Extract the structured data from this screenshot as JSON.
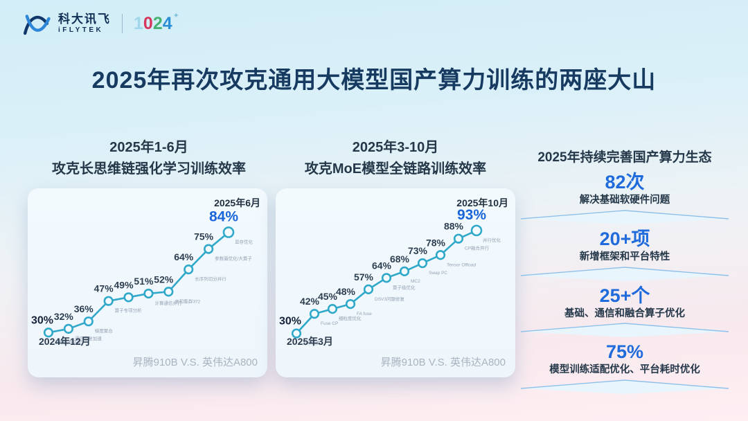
{
  "header": {
    "brand_cn": "科大讯飞",
    "brand_en": "iFLYTEK",
    "divider": "|",
    "digits": [
      "1",
      "0",
      "2",
      "4"
    ],
    "sparkle": "✦"
  },
  "title": "2025年再次攻克通用大模型国产算力训练的两座大山",
  "chart_data": [
    {
      "type": "line",
      "heading1": "2025年1-6月",
      "heading2": "攻克长思维链强化学习训练效率",
      "start_label": "2024年12月",
      "end_label": "2025年6月",
      "footer": "昇腾910B V.S. 英伟达A800",
      "labels": [
        "30%",
        "32%",
        "36%",
        "47%",
        "49%",
        "51%",
        "52%",
        "64%",
        "75%",
        "84%"
      ],
      "values": [
        30,
        32,
        36,
        47,
        49,
        51,
        52,
        64,
        75,
        84
      ],
      "annotations": [
        "训练集群适配",
        "通信修复加速",
        "梯度聚合",
        "算子专项分析",
        "",
        "计算通信并行",
        "亲和集群372",
        "长序列切分并行",
        "参数面优化/大算子",
        "显存优化"
      ],
      "ylim": [
        26,
        92
      ],
      "line_color": "#2fa8c9",
      "grid": false,
      "legend": "none"
    },
    {
      "type": "line",
      "heading1": "2025年3-10月",
      "heading2": "攻克MoE模型全链路训练效率",
      "start_label": "2025年3月",
      "end_label": "2025年10月",
      "footer": "昇腾910B V.S. 英伟达A800",
      "labels": [
        "30%",
        "42%",
        "45%",
        "48%",
        "57%",
        "64%",
        "68%",
        "73%",
        "78%",
        "88%",
        "93%"
      ],
      "values": [
        30,
        42,
        45,
        48,
        57,
        64,
        68,
        73,
        78,
        88,
        93
      ],
      "annotations": [
        "万卡集群",
        "Fuse CP",
        "细粒度优化",
        "FA fuse",
        "DSV3问题修复",
        "算子级优化",
        "MC2",
        "Swap PC",
        "Tensor Offload",
        "CP融合并行",
        "并行优化"
      ],
      "ylim": [
        26,
        101
      ],
      "line_color": "#2fa8c9",
      "grid": false,
      "legend": "none"
    }
  ],
  "right_panel": {
    "title": "2025年持续完善国产算力生态",
    "stats": [
      {
        "value": "82次",
        "label": "解决基础软硬件问题"
      },
      {
        "value": "20+项",
        "label": "新增框架和平台特性"
      },
      {
        "value": "25+个",
        "label": "基础、通信和融合算子优化"
      },
      {
        "value": "75%",
        "label": "模型训练适配优化、平台耗时优化"
      }
    ]
  },
  "colors": {
    "accent_blue": "#1a66d9",
    "stat_blue": "#1f6bdb",
    "line_teal": "#2fa8c9",
    "title_navy": "#173a61",
    "bg_top": "#d2edf7",
    "bg_bottom": "#fdeff2"
  }
}
